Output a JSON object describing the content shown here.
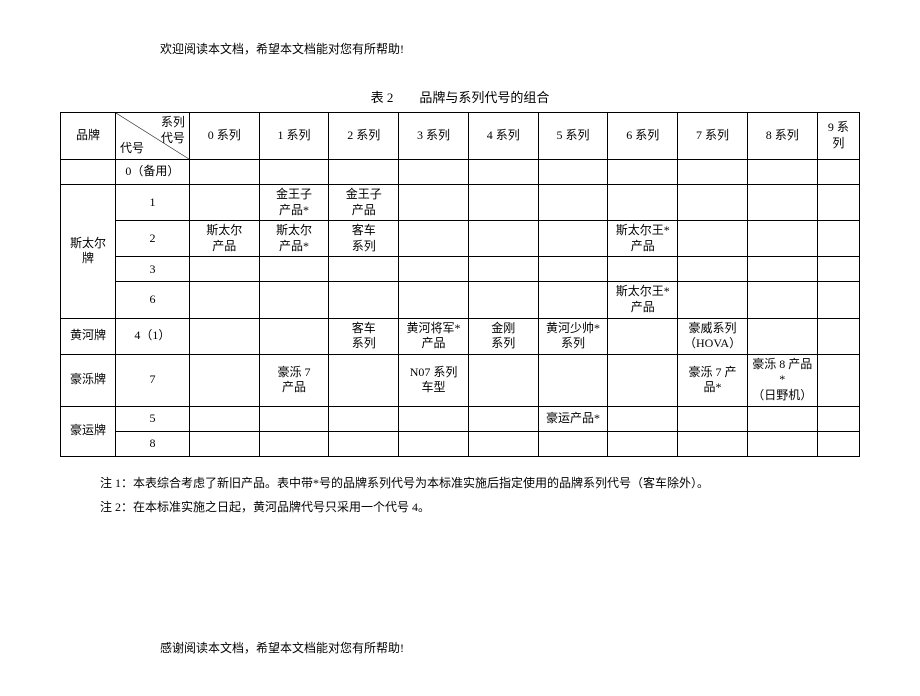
{
  "top_text": "欢迎阅读本文档，希望本文档能对您有所帮助!",
  "title": "表 2　　品牌与系列代号的组合",
  "diag_top": "系列\n代号",
  "diag_bot": "代号",
  "row_brand": "品牌",
  "cols": [
    "0 系列",
    "1 系列",
    "2 系列",
    "3 系列",
    "4 系列",
    "5 系列",
    "6 系列",
    "7 系列",
    "8 系列",
    "9 系\n列"
  ],
  "r0_code": "0（备用）",
  "brand_ster": "斯太尔\n牌",
  "r1_code": "1",
  "r1_c1": "金王子\n产品*",
  "r1_c2": "金王子\n产品",
  "r2_code": "2",
  "r2_c0": "斯太尔\n产品",
  "r2_c1": "斯太尔\n产品*",
  "r2_c2": "客车\n系列",
  "r2_c6": "斯太尔王*\n产品",
  "r3_code": "3",
  "r6_code": "6",
  "r6_c6": "斯太尔王*\n产品",
  "brand_huanghe": "黄河牌",
  "r4_code": "4（1）",
  "r4_c2": "客车\n系列",
  "r4_c3": "黄河将军*\n产品",
  "r4_c4": "金刚\n系列",
  "r4_c5": "黄河少帅*\n系列",
  "r4_c7": "豪威系列\n（HOVA）",
  "brand_haomo": "豪泺牌",
  "r7_code": "7",
  "r7_c1": "豪泺 7\n产品",
  "r7_c3": "N07 系列\n车型",
  "r7_c7": "豪泺 7 产\n品*",
  "r7_c8": "豪泺 8 产品*\n（日野机）",
  "brand_haoyun": "豪运牌",
  "r5_code": "5",
  "r5_c5": "豪运产品*",
  "r8_code": "8",
  "note1": "注 1：本表综合考虑了新旧产品。表中带*号的品牌系列代号为本标准实施后指定使用的品牌系列代号（客车除外）。",
  "note2": "注 2：在本标准实施之日起，黄河品牌代号只采用一个代号 4。",
  "bottom_text": "感谢阅读本文档，希望本文档能对您有所帮助!"
}
